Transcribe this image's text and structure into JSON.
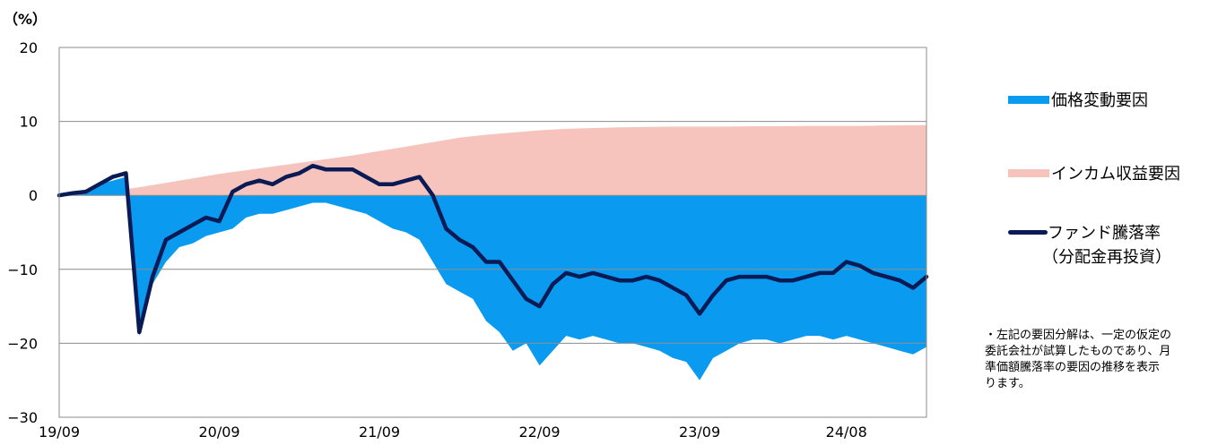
{
  "unit_label": "（%）",
  "legend": {
    "price": "価格変動要因",
    "income": "インカム収益要因",
    "fund_line1": "ファンド騰落率",
    "fund_line2": "（分配金再投資）"
  },
  "note": [
    "・左記の要因分解は、一定の仮定の",
    "委託会社が試算したものであり、月",
    "準価額騰落率の要因の推移を表示",
    "ります。"
  ],
  "colors": {
    "price": "#0a9bf0",
    "income": "#f6c4bc",
    "fund": "#0a1a55",
    "grid": "#8c8c8c"
  },
  "chart_data": {
    "type": "area",
    "ylim": [
      -30,
      20
    ],
    "yticks": [
      20,
      10,
      0,
      -10,
      -20,
      -30
    ],
    "ytick_labels": [
      "20",
      "10",
      "0",
      "−10",
      "−20",
      "−30"
    ],
    "x_tick_labels": [
      "19/09",
      "20/09",
      "21/09",
      "22/09",
      "23/09",
      "24/08"
    ],
    "x_tick_months": [
      "2019-09",
      "2020-09",
      "2021-09",
      "2022-09",
      "2023-09",
      "2024-08"
    ],
    "x_range": [
      "2019-09",
      "2025-02"
    ],
    "grid": "horizontal",
    "legend_position": "right",
    "series": [
      {
        "name": "価格変動要因",
        "kind": "area",
        "x": [
          "2019-09",
          "2019-10",
          "2019-11",
          "2019-12",
          "2020-01",
          "2020-02",
          "2020-03",
          "2020-04",
          "2020-05",
          "2020-06",
          "2020-07",
          "2020-08",
          "2020-09",
          "2020-10",
          "2020-11",
          "2020-12",
          "2021-01",
          "2021-02",
          "2021-03",
          "2021-04",
          "2021-05",
          "2021-06",
          "2021-07",
          "2021-08",
          "2021-09",
          "2021-10",
          "2021-11",
          "2021-12",
          "2022-01",
          "2022-02",
          "2022-03",
          "2022-04",
          "2022-05",
          "2022-06",
          "2022-07",
          "2022-08",
          "2022-09",
          "2022-10",
          "2022-11",
          "2022-12",
          "2023-01",
          "2023-02",
          "2023-03",
          "2023-04",
          "2023-05",
          "2023-06",
          "2023-07",
          "2023-08",
          "2023-09",
          "2023-10",
          "2023-11",
          "2023-12",
          "2024-01",
          "2024-02",
          "2024-03",
          "2024-04",
          "2024-05",
          "2024-06",
          "2024-07",
          "2024-08",
          "2024-09",
          "2024-10",
          "2024-11",
          "2024-12",
          "2025-01",
          "2025-02"
        ],
        "values": [
          0,
          0.2,
          0.5,
          1.5,
          2.0,
          2.5,
          -19.0,
          -12.0,
          -9.0,
          -7.0,
          -6.5,
          -5.5,
          -5.0,
          -4.5,
          -3.0,
          -2.5,
          -2.5,
          -2.0,
          -1.5,
          -1.0,
          -1.0,
          -1.5,
          -2.0,
          -2.5,
          -3.5,
          -4.5,
          -5.0,
          -6.0,
          -9.0,
          -12.0,
          -13.0,
          -14.0,
          -17.0,
          -18.5,
          -21.0,
          -20.0,
          -23.0,
          -21.0,
          -19.0,
          -19.5,
          -19.0,
          -19.5,
          -20.0,
          -20.0,
          -20.5,
          -21.0,
          -22.0,
          -22.5,
          -25.0,
          -22.0,
          -21.0,
          -20.0,
          -19.5,
          -19.5,
          -20.0,
          -19.5,
          -19.0,
          -19.0,
          -19.5,
          -19.0,
          -19.5,
          -20.0,
          -20.5,
          -21.0,
          -21.5,
          -20.5
        ]
      },
      {
        "name": "インカム収益要因",
        "kind": "area",
        "x": [
          "2019-09",
          "2019-11",
          "2020-01",
          "2020-03",
          "2020-05",
          "2020-07",
          "2020-09",
          "2020-11",
          "2021-01",
          "2021-03",
          "2021-05",
          "2021-07",
          "2021-09",
          "2021-11",
          "2022-01",
          "2022-03",
          "2022-05",
          "2022-07",
          "2022-09",
          "2022-11",
          "2023-01",
          "2023-03",
          "2023-05",
          "2023-07",
          "2023-09",
          "2023-11",
          "2024-01",
          "2024-03",
          "2024-05",
          "2024-07",
          "2024-09",
          "2024-11",
          "2025-02"
        ],
        "values": [
          0,
          0.3,
          0.6,
          1.1,
          1.7,
          2.3,
          2.9,
          3.4,
          3.9,
          4.4,
          4.9,
          5.4,
          6.0,
          6.6,
          7.2,
          7.8,
          8.2,
          8.5,
          8.8,
          9.0,
          9.1,
          9.2,
          9.25,
          9.3,
          9.3,
          9.3,
          9.35,
          9.35,
          9.4,
          9.4,
          9.4,
          9.45,
          9.5
        ]
      },
      {
        "name": "ファンド騰落率（分配金再投資）",
        "kind": "line",
        "x": [
          "2019-09",
          "2019-10",
          "2019-11",
          "2019-12",
          "2020-01",
          "2020-02",
          "2020-03",
          "2020-04",
          "2020-05",
          "2020-06",
          "2020-07",
          "2020-08",
          "2020-09",
          "2020-10",
          "2020-11",
          "2020-12",
          "2021-01",
          "2021-02",
          "2021-03",
          "2021-04",
          "2021-05",
          "2021-06",
          "2021-07",
          "2021-08",
          "2021-09",
          "2021-10",
          "2021-11",
          "2021-12",
          "2022-01",
          "2022-02",
          "2022-03",
          "2022-04",
          "2022-05",
          "2022-06",
          "2022-07",
          "2022-08",
          "2022-09",
          "2022-10",
          "2022-11",
          "2022-12",
          "2023-01",
          "2023-02",
          "2023-03",
          "2023-04",
          "2023-05",
          "2023-06",
          "2023-07",
          "2023-08",
          "2023-09",
          "2023-10",
          "2023-11",
          "2023-12",
          "2024-01",
          "2024-02",
          "2024-03",
          "2024-04",
          "2024-05",
          "2024-06",
          "2024-07",
          "2024-08",
          "2024-09",
          "2024-10",
          "2024-11",
          "2024-12",
          "2025-01",
          "2025-02"
        ],
        "values": [
          0,
          0.3,
          0.5,
          1.5,
          2.5,
          3.0,
          -18.5,
          -11.0,
          -6.0,
          -5.0,
          -4.0,
          -3.0,
          -3.5,
          0.5,
          1.5,
          2.0,
          1.5,
          2.5,
          3.0,
          4.0,
          3.5,
          3.5,
          3.5,
          2.5,
          1.5,
          1.5,
          2.0,
          2.5,
          0,
          -4.5,
          -6.0,
          -7.0,
          -9.0,
          -9.0,
          -11.5,
          -14.0,
          -15.0,
          -12.0,
          -10.5,
          -11.0,
          -10.5,
          -11.0,
          -11.5,
          -11.5,
          -11.0,
          -11.5,
          -12.5,
          -13.5,
          -16.0,
          -13.5,
          -11.5,
          -11.0,
          -11.0,
          -11.0,
          -11.5,
          -11.5,
          -11.0,
          -10.5,
          -10.5,
          -9.0,
          -9.5,
          -10.5,
          -11.0,
          -11.5,
          -12.5,
          -11.0
        ]
      }
    ]
  }
}
